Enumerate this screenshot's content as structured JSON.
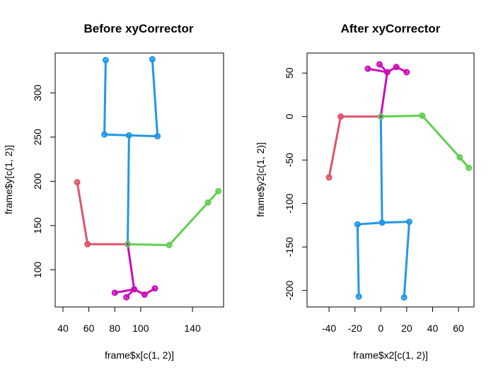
{
  "chart_data": [
    {
      "type": "scatter",
      "title": "Before xyCorrector",
      "xlabel": "frame$x[c(1, 2)]",
      "ylabel": "frame$y[c(1, 2)]",
      "xlim": [
        34,
        164
      ],
      "ylim": [
        58,
        345
      ],
      "xticks": [
        "40",
        "60",
        "80",
        "100",
        "140"
      ],
      "yticks": [
        "100",
        "150",
        "200",
        "250",
        "300"
      ],
      "colors": {
        "red": "#DF536B",
        "green": "#61D04F",
        "blue": "#2297E6",
        "magenta": "#CD0BBC"
      },
      "segments": [
        {
          "color": "red",
          "x": [
            51,
            59
          ],
          "y": [
            199,
            129
          ]
        },
        {
          "color": "red",
          "x": [
            59,
            90
          ],
          "y": [
            129,
            129
          ]
        },
        {
          "color": "green",
          "x": [
            90,
            122
          ],
          "y": [
            129,
            128
          ]
        },
        {
          "color": "green",
          "x": [
            122,
            152
          ],
          "y": [
            128,
            176
          ]
        },
        {
          "color": "green",
          "x": [
            152,
            160
          ],
          "y": [
            176,
            189
          ]
        },
        {
          "color": "blue",
          "x": [
            90,
            91
          ],
          "y": [
            129,
            252
          ]
        },
        {
          "color": "blue",
          "x": [
            91,
            72
          ],
          "y": [
            252,
            253
          ]
        },
        {
          "color": "blue",
          "x": [
            91,
            113
          ],
          "y": [
            252,
            251
          ]
        },
        {
          "color": "blue",
          "x": [
            72,
            73
          ],
          "y": [
            253,
            337
          ]
        },
        {
          "color": "blue",
          "x": [
            113,
            109
          ],
          "y": [
            251,
            338
          ]
        },
        {
          "color": "magenta",
          "x": [
            90,
            95
          ],
          "y": [
            129,
            78
          ]
        },
        {
          "color": "magenta",
          "x": [
            95,
            80
          ],
          "y": [
            78,
            74
          ]
        },
        {
          "color": "magenta",
          "x": [
            95,
            89
          ],
          "y": [
            78,
            69
          ]
        },
        {
          "color": "magenta",
          "x": [
            95,
            103
          ],
          "y": [
            78,
            72
          ]
        },
        {
          "color": "magenta",
          "x": [
            103,
            111
          ],
          "y": [
            72,
            79
          ]
        }
      ],
      "points": [
        {
          "color": "red",
          "x": 51,
          "y": 199
        },
        {
          "color": "red",
          "x": 59,
          "y": 129
        },
        {
          "color": "magenta",
          "x": 90,
          "y": 129
        },
        {
          "color": "green",
          "x": 90,
          "y": 129
        },
        {
          "color": "green",
          "x": 122,
          "y": 128
        },
        {
          "color": "green",
          "x": 152,
          "y": 176
        },
        {
          "color": "green",
          "x": 160,
          "y": 189
        },
        {
          "color": "blue",
          "x": 91,
          "y": 252
        },
        {
          "color": "blue",
          "x": 72,
          "y": 253
        },
        {
          "color": "blue",
          "x": 113,
          "y": 251
        },
        {
          "color": "blue",
          "x": 73,
          "y": 337
        },
        {
          "color": "blue",
          "x": 109,
          "y": 338
        },
        {
          "color": "magenta",
          "x": 95,
          "y": 78
        },
        {
          "color": "magenta",
          "x": 80,
          "y": 74
        },
        {
          "color": "magenta",
          "x": 89,
          "y": 69
        },
        {
          "color": "magenta",
          "x": 103,
          "y": 72
        },
        {
          "color": "magenta",
          "x": 111,
          "y": 79
        }
      ]
    },
    {
      "type": "scatter",
      "title": "After xyCorrector",
      "xlabel": "frame$x2[c(1, 2)]",
      "ylabel": "frame$y2[c(1, 2)]",
      "xlim": [
        -57,
        72
      ],
      "ylim": [
        -219,
        73
      ],
      "xticks": [
        "-40",
        "-20",
        "0",
        "20",
        "40",
        "60"
      ],
      "yticks": [
        "-200",
        "-150",
        "-100",
        "-50",
        "0",
        "50"
      ],
      "colors": {
        "red": "#DF536B",
        "green": "#61D04F",
        "blue": "#2297E6",
        "magenta": "#CD0BBC"
      },
      "segments": [
        {
          "color": "red",
          "x": [
            -40,
            -31
          ],
          "y": [
            -70,
            0
          ]
        },
        {
          "color": "red",
          "x": [
            -31,
            0
          ],
          "y": [
            0,
            0
          ]
        },
        {
          "color": "green",
          "x": [
            0,
            32
          ],
          "y": [
            0,
            1
          ]
        },
        {
          "color": "green",
          "x": [
            32,
            61
          ],
          "y": [
            1,
            -47
          ]
        },
        {
          "color": "green",
          "x": [
            61,
            68
          ],
          "y": [
            -47,
            -59
          ]
        },
        {
          "color": "blue",
          "x": [
            0,
            1
          ],
          "y": [
            0,
            -122
          ]
        },
        {
          "color": "blue",
          "x": [
            1,
            -18
          ],
          "y": [
            -122,
            -124
          ]
        },
        {
          "color": "blue",
          "x": [
            1,
            22
          ],
          "y": [
            -122,
            -121
          ]
        },
        {
          "color": "blue",
          "x": [
            -18,
            -17
          ],
          "y": [
            -124,
            -207
          ]
        },
        {
          "color": "blue",
          "x": [
            22,
            18
          ],
          "y": [
            -121,
            -208
          ]
        },
        {
          "color": "magenta",
          "x": [
            0,
            5
          ],
          "y": [
            0,
            51
          ]
        },
        {
          "color": "magenta",
          "x": [
            5,
            -10
          ],
          "y": [
            51,
            55
          ]
        },
        {
          "color": "magenta",
          "x": [
            5,
            -1
          ],
          "y": [
            51,
            60
          ]
        },
        {
          "color": "magenta",
          "x": [
            5,
            12
          ],
          "y": [
            51,
            57
          ]
        },
        {
          "color": "magenta",
          "x": [
            12,
            20
          ],
          "y": [
            57,
            51
          ]
        }
      ],
      "points": [
        {
          "color": "red",
          "x": -40,
          "y": -70
        },
        {
          "color": "red",
          "x": -31,
          "y": 0
        },
        {
          "color": "magenta",
          "x": 0,
          "y": 0
        },
        {
          "color": "green",
          "x": 0,
          "y": 0
        },
        {
          "color": "green",
          "x": 32,
          "y": 1
        },
        {
          "color": "green",
          "x": 61,
          "y": -47
        },
        {
          "color": "green",
          "x": 68,
          "y": -59
        },
        {
          "color": "blue",
          "x": 1,
          "y": -122
        },
        {
          "color": "blue",
          "x": -18,
          "y": -124
        },
        {
          "color": "blue",
          "x": 22,
          "y": -121
        },
        {
          "color": "blue",
          "x": -17,
          "y": -207
        },
        {
          "color": "blue",
          "x": 18,
          "y": -208
        },
        {
          "color": "magenta",
          "x": 5,
          "y": 51
        },
        {
          "color": "magenta",
          "x": -10,
          "y": 55
        },
        {
          "color": "magenta",
          "x": -1,
          "y": 60
        },
        {
          "color": "magenta",
          "x": 12,
          "y": 57
        },
        {
          "color": "magenta",
          "x": 20,
          "y": 51
        }
      ]
    }
  ]
}
